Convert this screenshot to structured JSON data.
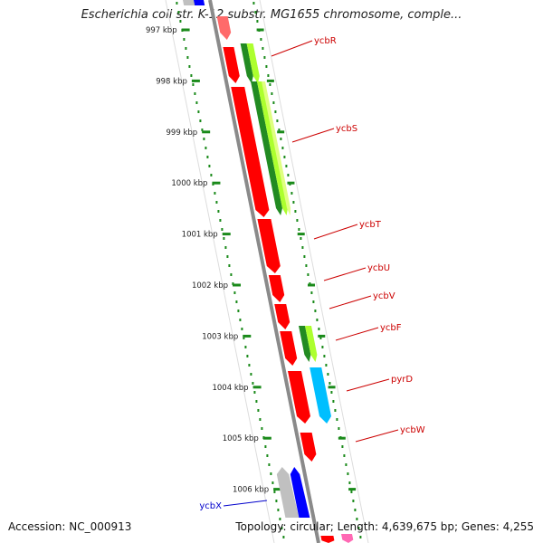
{
  "title": "Escherichia coli str. K-12 substr. MG1655 chromosome, comple...",
  "footer": {
    "accession": "Accession: NC_000913",
    "summary": "Topology: circular; Length: 4,639,675 bp; Genes: 4,255"
  },
  "colors": {
    "backbone": "#8a8a8a",
    "forward_cds": "#ff0000",
    "scale_ticks": "#1a8a1a",
    "label_red": "#cc0000",
    "label_blue": "#0000cc",
    "cog_dark_green": "#228b22",
    "cog_light_green": "#adff2f",
    "cog_cyan": "#00bfff",
    "cog_blue": "#0000ff",
    "cog_grey": "#c0c0c0",
    "cog_pink": "#ff69b4"
  },
  "scale": {
    "ticks": [
      {
        "label": "997 kbp"
      },
      {
        "label": "998 kbp"
      },
      {
        "label": "999 kbp"
      },
      {
        "label": "1000 kbp"
      },
      {
        "label": "1001 kbp"
      },
      {
        "label": "1002 kbp"
      },
      {
        "label": "1003 kbp"
      },
      {
        "label": "1004 kbp"
      },
      {
        "label": "1005 kbp"
      },
      {
        "label": "1006 kbp"
      }
    ]
  },
  "gene_labels": [
    {
      "name": "ycbR",
      "color": "#cc0000"
    },
    {
      "name": "ycbS",
      "color": "#cc0000"
    },
    {
      "name": "ycbT",
      "color": "#cc0000"
    },
    {
      "name": "ycbU",
      "color": "#cc0000"
    },
    {
      "name": "ycbV",
      "color": "#cc0000"
    },
    {
      "name": "ycbF",
      "color": "#cc0000"
    },
    {
      "name": "pyrD",
      "color": "#cc0000"
    },
    {
      "name": "ycbW",
      "color": "#cc0000"
    },
    {
      "name": "ycbX",
      "color": "#0000cc"
    }
  ]
}
